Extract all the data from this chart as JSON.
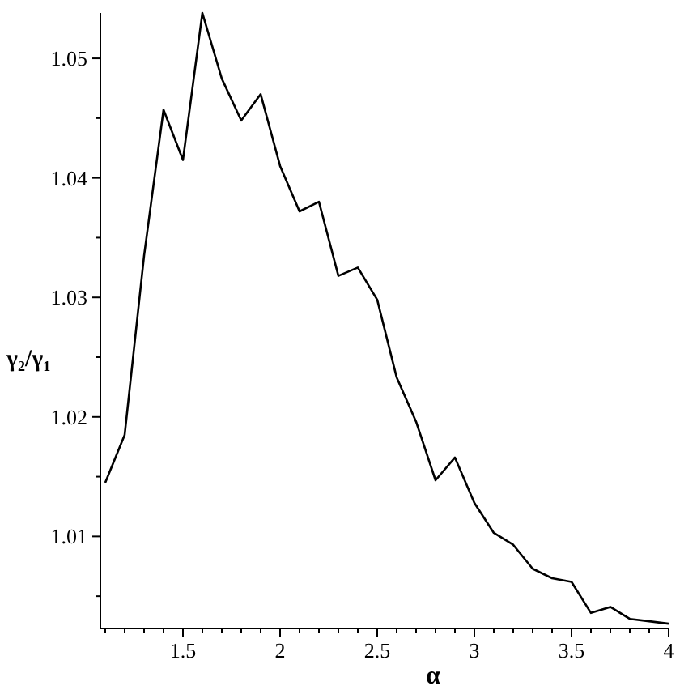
{
  "chart_data": {
    "type": "line",
    "xlabel": "α",
    "ylabel": "γ₂/γ₁",
    "xlim": [
      1.075,
      4.0
    ],
    "ylim": [
      1.0023,
      1.0538
    ],
    "xticks": [
      {
        "value": 1.1,
        "label": null
      },
      {
        "value": 1.2,
        "label": null
      },
      {
        "value": 1.3,
        "label": null
      },
      {
        "value": 1.4,
        "label": null
      },
      1.5,
      {
        "value": 1.6,
        "label": null
      },
      {
        "value": 1.7,
        "label": null
      },
      {
        "value": 1.8,
        "label": null
      },
      {
        "value": 1.9,
        "label": null
      },
      2,
      {
        "value": 2.1,
        "label": null
      },
      {
        "value": 2.2,
        "label": null
      },
      {
        "value": 2.3,
        "label": null
      },
      {
        "value": 2.4,
        "label": null
      },
      2.5,
      {
        "value": 2.6,
        "label": null
      },
      {
        "value": 2.7,
        "label": null
      },
      {
        "value": 2.8,
        "label": null
      },
      {
        "value": 2.9,
        "label": null
      },
      3,
      {
        "value": 3.1,
        "label": null
      },
      {
        "value": 3.2,
        "label": null
      },
      {
        "value": 3.3,
        "label": null
      },
      {
        "value": 3.4,
        "label": null
      },
      3.5,
      {
        "value": 3.6,
        "label": null
      },
      {
        "value": 3.7,
        "label": null
      },
      {
        "value": 3.8,
        "label": null
      },
      {
        "value": 3.9,
        "label": null
      },
      4
    ],
    "yticks": [
      {
        "value": 1.005,
        "label": null
      },
      1.01,
      {
        "value": 1.015,
        "label": null
      },
      1.02,
      {
        "value": 1.025,
        "label": null
      },
      1.03,
      {
        "value": 1.035,
        "label": null
      },
      1.04,
      {
        "value": 1.045,
        "label": null
      },
      1.05
    ],
    "x": [
      1.1,
      1.2,
      1.3,
      1.4,
      1.5,
      1.6,
      1.7,
      1.8,
      1.9,
      2.0,
      2.1,
      2.2,
      2.3,
      2.4,
      2.5,
      2.6,
      2.7,
      2.8,
      2.9,
      3.0,
      3.1,
      3.2,
      3.3,
      3.4,
      3.5,
      3.6,
      3.7,
      3.8,
      3.9,
      4.0
    ],
    "series": [
      {
        "color": "#000000",
        "values": [
          1.0145,
          1.0185,
          1.0335,
          1.0457,
          1.0415,
          1.0538,
          1.0483,
          1.0448,
          1.047,
          1.041,
          1.0372,
          1.038,
          1.0318,
          1.0325,
          1.0298,
          1.0233,
          1.0196,
          1.0147,
          1.0166,
          1.0128,
          1.0103,
          1.0093,
          1.0073,
          1.0065,
          1.0062,
          1.0036,
          1.0041,
          1.0031,
          1.0029,
          1.0027
        ]
      }
    ]
  }
}
